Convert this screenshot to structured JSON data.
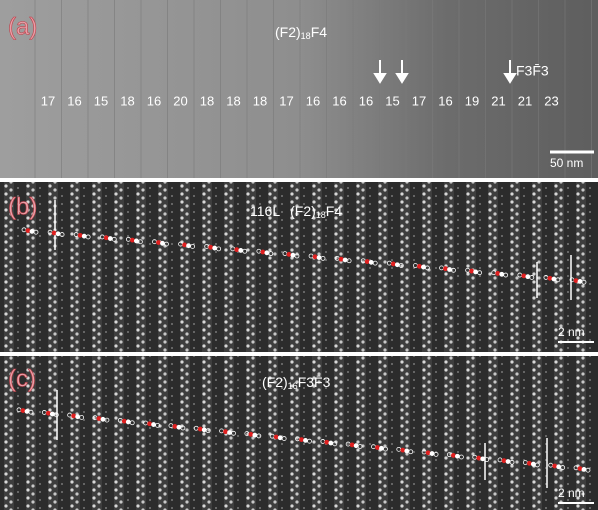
{
  "panels": [
    {
      "label": "(a)",
      "title": {
        "prefix": "(F2)",
        "sub": "18",
        "suffix": "F4"
      },
      "arrow_label": "F3F̄3",
      "numbers": [
        "17",
        "16",
        "15",
        "18",
        "16",
        "20",
        "18",
        "18",
        "18",
        "17",
        "16",
        "16",
        "16",
        "15",
        "17",
        "16",
        "19",
        "21",
        "21",
        "23"
      ],
      "scale_bar": "50 nm"
    },
    {
      "label": "(b)",
      "layers": "116L",
      "title": {
        "prefix": "(F2)",
        "sub": "18",
        "suffix": "F4"
      },
      "scale_bar": "2 nm"
    },
    {
      "label": "(c)",
      "title": {
        "prefix": "(F2)",
        "sub": "16",
        "suffix": "F3F̄3"
      },
      "scale_bar": "2 nm"
    }
  ]
}
